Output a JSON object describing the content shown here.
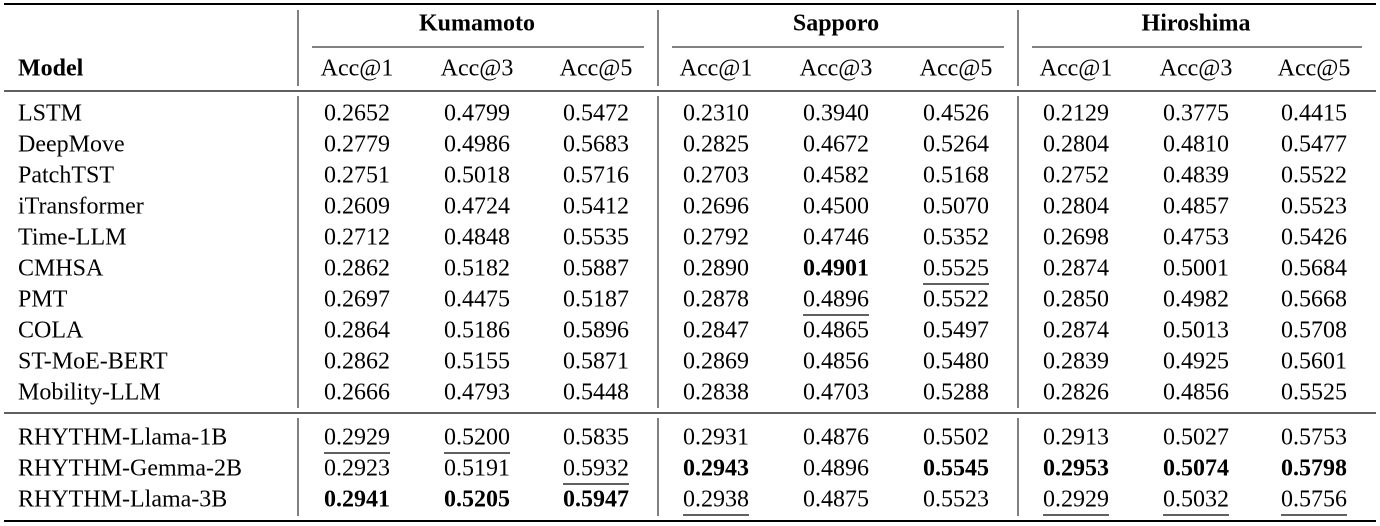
{
  "table": {
    "header": {
      "model": "Model",
      "groups": [
        "Kumamoto",
        "Sapporo",
        "Hiroshima"
      ],
      "metrics": [
        "Acc@1",
        "Acc@3",
        "Acc@5"
      ]
    },
    "sections": [
      {
        "rows": [
          {
            "model": "LSTM",
            "values": [
              "0.2652",
              "0.4799",
              "0.5472",
              "0.2310",
              "0.3940",
              "0.4526",
              "0.2129",
              "0.3775",
              "0.4415"
            ],
            "bold": [],
            "underline": []
          },
          {
            "model": "DeepMove",
            "values": [
              "0.2779",
              "0.4986",
              "0.5683",
              "0.2825",
              "0.4672",
              "0.5264",
              "0.2804",
              "0.4810",
              "0.5477"
            ],
            "bold": [],
            "underline": []
          },
          {
            "model": "PatchTST",
            "values": [
              "0.2751",
              "0.5018",
              "0.5716",
              "0.2703",
              "0.4582",
              "0.5168",
              "0.2752",
              "0.4839",
              "0.5522"
            ],
            "bold": [],
            "underline": []
          },
          {
            "model": "iTransformer",
            "values": [
              "0.2609",
              "0.4724",
              "0.5412",
              "0.2696",
              "0.4500",
              "0.5070",
              "0.2804",
              "0.4857",
              "0.5523"
            ],
            "bold": [],
            "underline": []
          },
          {
            "model": "Time-LLM",
            "values": [
              "0.2712",
              "0.4848",
              "0.5535",
              "0.2792",
              "0.4746",
              "0.5352",
              "0.2698",
              "0.4753",
              "0.5426"
            ],
            "bold": [],
            "underline": []
          },
          {
            "model": "CMHSA",
            "values": [
              "0.2862",
              "0.5182",
              "0.5887",
              "0.2890",
              "0.4901",
              "0.5525",
              "0.2874",
              "0.5001",
              "0.5684"
            ],
            "bold": [
              4
            ],
            "underline": [
              5
            ]
          },
          {
            "model": "PMT",
            "values": [
              "0.2697",
              "0.4475",
              "0.5187",
              "0.2878",
              "0.4896",
              "0.5522",
              "0.2850",
              "0.4982",
              "0.5668"
            ],
            "bold": [],
            "underline": [
              4
            ]
          },
          {
            "model": "COLA",
            "values": [
              "0.2864",
              "0.5186",
              "0.5896",
              "0.2847",
              "0.4865",
              "0.5497",
              "0.2874",
              "0.5013",
              "0.5708"
            ],
            "bold": [],
            "underline": []
          },
          {
            "model": "ST-MoE-BERT",
            "values": [
              "0.2862",
              "0.5155",
              "0.5871",
              "0.2869",
              "0.4856",
              "0.5480",
              "0.2839",
              "0.4925",
              "0.5601"
            ],
            "bold": [],
            "underline": []
          },
          {
            "model": "Mobility-LLM",
            "values": [
              "0.2666",
              "0.4793",
              "0.5448",
              "0.2838",
              "0.4703",
              "0.5288",
              "0.2826",
              "0.4856",
              "0.5525"
            ],
            "bold": [],
            "underline": []
          }
        ]
      },
      {
        "rows": [
          {
            "model": "RHYTHM-Llama-1B",
            "values": [
              "0.2929",
              "0.5200",
              "0.5835",
              "0.2931",
              "0.4876",
              "0.5502",
              "0.2913",
              "0.5027",
              "0.5753"
            ],
            "bold": [],
            "underline": [
              0,
              1
            ]
          },
          {
            "model": "RHYTHM-Gemma-2B",
            "values": [
              "0.2923",
              "0.5191",
              "0.5932",
              "0.2943",
              "0.4896",
              "0.5545",
              "0.2953",
              "0.5074",
              "0.5798"
            ],
            "bold": [
              3,
              5,
              6,
              7,
              8
            ],
            "underline": [
              2
            ]
          },
          {
            "model": "RHYTHM-Llama-3B",
            "values": [
              "0.2941",
              "0.5205",
              "0.5947",
              "0.2938",
              "0.4875",
              "0.5523",
              "0.2929",
              "0.5032",
              "0.5756"
            ],
            "bold": [
              0,
              1,
              2
            ],
            "underline": [
              3,
              6,
              7,
              8
            ]
          }
        ]
      }
    ]
  }
}
